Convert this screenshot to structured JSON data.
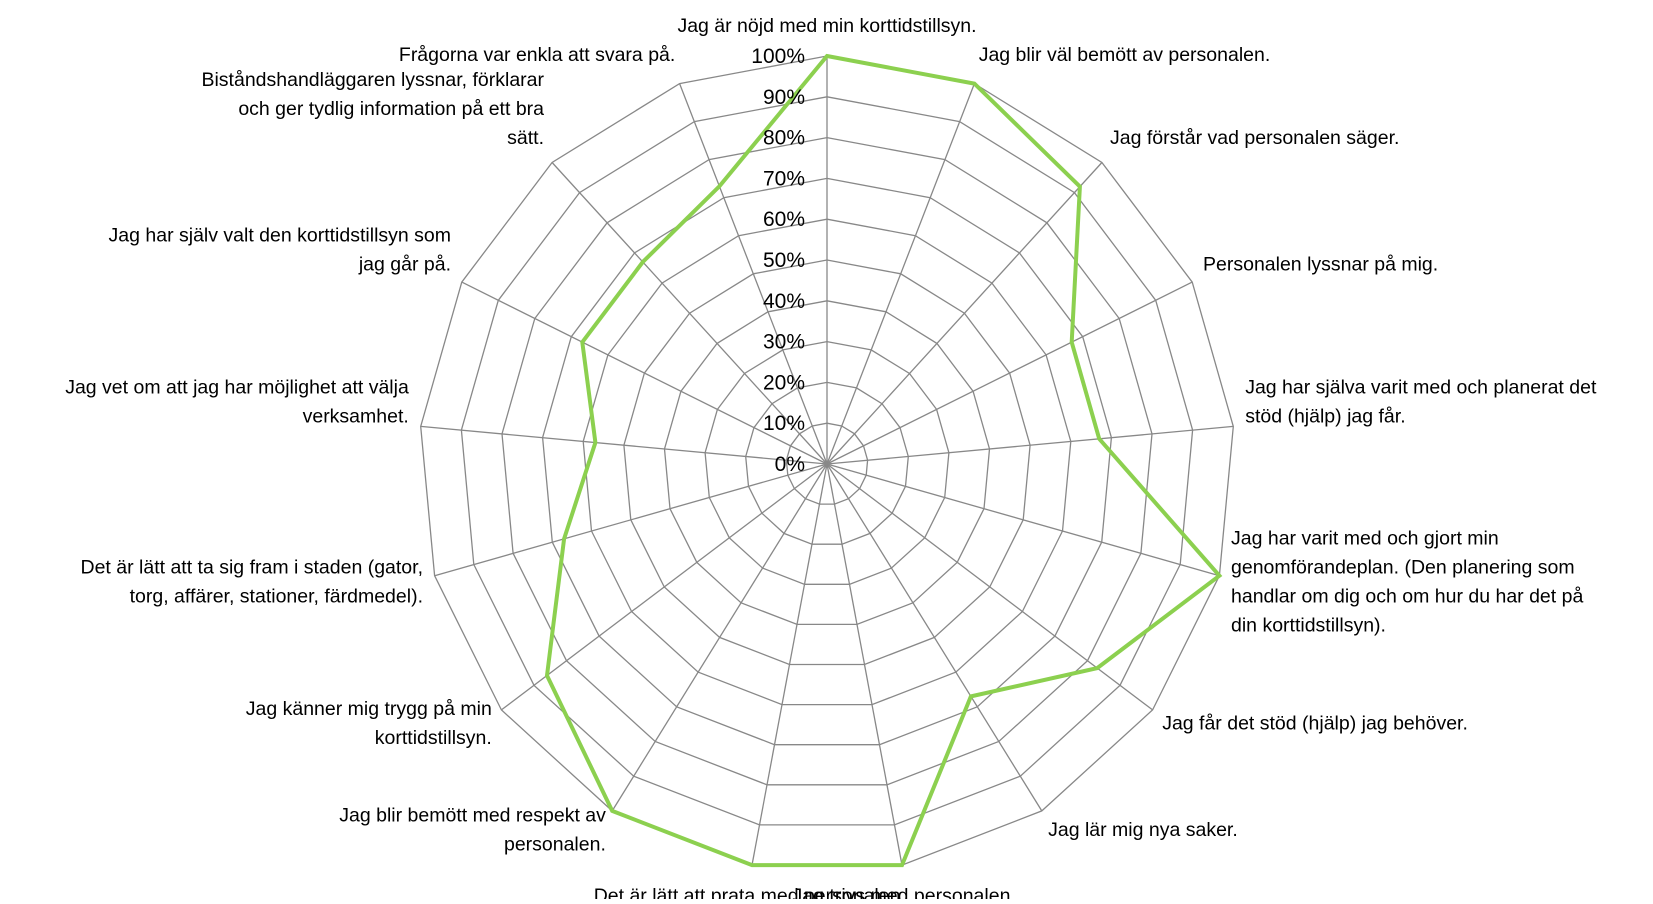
{
  "chart_data": {
    "type": "radar",
    "categories": [
      "Jag är nöjd med min korttidstillsyn.",
      "Jag blir väl bemött av personalen.",
      "Jag förstår vad personalen säger.",
      "Personalen lyssnar på mig.",
      "Jag har själva varit med och planerat det stöd (hjälp) jag får.",
      "Jag har varit med och gjort min genomförandeplan. (Den planering som handlar om dig och om hur du har det på din korttidstillsyn).",
      "Jag får det stöd (hjälp) jag behöver.",
      "Jag lär mig nya saker.",
      "Jag trivs med personalen.",
      "Det är lätt att prata med personalen.",
      "Jag blir bemött med respekt av personalen.",
      "Jag känner mig trygg på min korttidstillsyn.",
      "Det är lätt att ta sig fram i staden (gator, torg, affärer, stationer, färdmedel).",
      "Jag vet om att jag har möjlighet att välja verksamhet.",
      "Jag har själv valt den korttidstillsyn som jag går på.",
      "Biståndshandläggaren lyssnar, förklarar och ger tydlig information på ett bra sätt.",
      "Frågorna var enkla att svara på."
    ],
    "label_lines": [
      [
        "Jag är nöjd med min korttidstillsyn."
      ],
      [
        "Jag blir väl bemött av personalen."
      ],
      [
        "Jag förstår vad personalen säger."
      ],
      [
        "Personalen lyssnar på mig."
      ],
      [
        "Jag har själva varit med och planerat det",
        "stöd (hjälp) jag får."
      ],
      [
        "Jag har varit med och gjort min",
        "genomförandeplan. (Den planering som",
        "handlar om dig och om hur du har det på",
        "din korttidstillsyn)."
      ],
      [
        "Jag får det stöd (hjälp) jag behöver."
      ],
      [
        "Jag lär mig nya saker."
      ],
      [
        "Jag trivs med personalen."
      ],
      [
        "Det är lätt att prata med personalen."
      ],
      [
        "Jag blir bemött med respekt av",
        "personalen."
      ],
      [
        "Jag känner mig trygg på min",
        "korttidstillsyn."
      ],
      [
        "Det är lätt att ta sig fram i staden (gator,",
        "torg, affärer, stationer, färdmedel)."
      ],
      [
        "Jag vet om att jag har möjlighet att välja",
        "verksamhet."
      ],
      [
        "Jag har själv valt den korttidstillsyn som",
        "jag går på."
      ],
      [
        "Biståndshandläggaren lyssnar, förklarar",
        "och ger tydlig information på ett bra",
        "sätt."
      ],
      [
        "Frågorna var enkla att svara på."
      ]
    ],
    "values": [
      100,
      100,
      92,
      67,
      67,
      100,
      83,
      67,
      100,
      100,
      100,
      86,
      67,
      57,
      67,
      67,
      73
    ],
    "tick_labels": [
      "0%",
      "10%",
      "20%",
      "30%",
      "40%",
      "50%",
      "60%",
      "70%",
      "80%",
      "90%",
      "100%"
    ],
    "range": [
      0,
      100
    ],
    "grid": true,
    "colors": {
      "series": "#8cd04f",
      "grid": "#888888",
      "text": "#000000"
    }
  }
}
